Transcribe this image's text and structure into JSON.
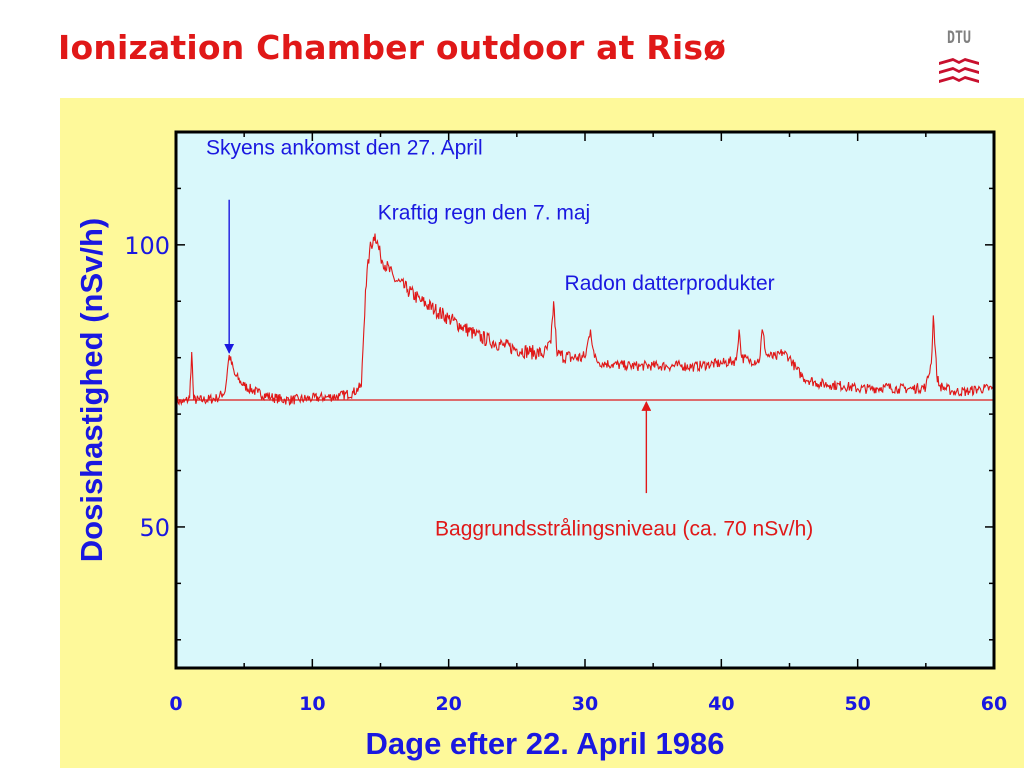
{
  "slide": {
    "title": "Ionization Chamber outdoor at Risø",
    "logo_text": "DTU"
  },
  "colors": {
    "title": "#e01818",
    "panel_bg": "#fef99a",
    "plot_bg": "#d9f8fb",
    "axis_text": "#1a18e0",
    "series": "#e01818",
    "annotation_blue": "#1a18e0",
    "annotation_red": "#e01818",
    "logo_red": "#c8102e",
    "logo_grey": "#808080"
  },
  "chart_data": {
    "type": "line",
    "title": "",
    "xlabel": "Dage efter 22. April 1986",
    "ylabel": "Dosishastighed (nSv/h)",
    "xlim": [
      0,
      60
    ],
    "ylim": [
      25,
      120
    ],
    "x_ticks": [
      0,
      10,
      20,
      30,
      40,
      50,
      60
    ],
    "y_ticks": [
      50,
      100
    ],
    "grid": false,
    "legend": "none",
    "series": [
      {
        "values_xy": [
          [
            0,
            72.5
          ],
          [
            0.5,
            72.0
          ],
          [
            1.0,
            72.8
          ],
          [
            1.15,
            81.0
          ],
          [
            1.3,
            72.5
          ],
          [
            2,
            72.5
          ],
          [
            3,
            72.8
          ],
          [
            3.6,
            74.0
          ],
          [
            3.9,
            80.5
          ],
          [
            4.3,
            77.0
          ],
          [
            5,
            75.0
          ],
          [
            6,
            73.8
          ],
          [
            7,
            73.0
          ],
          [
            8,
            72.5
          ],
          [
            9,
            72.6
          ],
          [
            10,
            72.8
          ],
          [
            11,
            73.0
          ],
          [
            12,
            73.2
          ],
          [
            13,
            73.8
          ],
          [
            13.6,
            75.0
          ],
          [
            13.9,
            92.0
          ],
          [
            14.2,
            99.0
          ],
          [
            14.6,
            102.0
          ],
          [
            15,
            98.0
          ],
          [
            16,
            94.0
          ],
          [
            17,
            92.0
          ],
          [
            18,
            90.0
          ],
          [
            19,
            88.5
          ],
          [
            20,
            87.0
          ],
          [
            21,
            85.5
          ],
          [
            22,
            84.0
          ],
          [
            23,
            83.0
          ],
          [
            24,
            82.2
          ],
          [
            25,
            81.5
          ],
          [
            26,
            81.0
          ],
          [
            27,
            80.7
          ],
          [
            27.5,
            82.5
          ],
          [
            27.7,
            90.0
          ],
          [
            27.9,
            82.0
          ],
          [
            28,
            80.5
          ],
          [
            29,
            80.0
          ],
          [
            30,
            80.0
          ],
          [
            30.4,
            85.0
          ],
          [
            30.7,
            80.0
          ],
          [
            31,
            79.2
          ],
          [
            32,
            78.8
          ],
          [
            33,
            78.6
          ],
          [
            34,
            78.5
          ],
          [
            35,
            78.6
          ],
          [
            36,
            78.5
          ],
          [
            37,
            78.6
          ],
          [
            38,
            78.4
          ],
          [
            39,
            78.8
          ],
          [
            40,
            79.0
          ],
          [
            41.1,
            79.5
          ],
          [
            41.3,
            85.0
          ],
          [
            41.5,
            80.0
          ],
          [
            42,
            79.5
          ],
          [
            42.8,
            79.5
          ],
          [
            43.0,
            85.0
          ],
          [
            43.3,
            80.5
          ],
          [
            44,
            80.0
          ],
          [
            44.5,
            81.0
          ],
          [
            45,
            80.0
          ],
          [
            45.5,
            78.0
          ],
          [
            46,
            76.5
          ],
          [
            47,
            75.5
          ],
          [
            48,
            75.2
          ],
          [
            49,
            75.0
          ],
          [
            50,
            74.5
          ],
          [
            51,
            74.5
          ],
          [
            52,
            74.8
          ],
          [
            53,
            74.5
          ],
          [
            54,
            74.5
          ],
          [
            55,
            74.8
          ],
          [
            55.4,
            79.0
          ],
          [
            55.55,
            87.5
          ],
          [
            55.8,
            77.0
          ],
          [
            56,
            75.0
          ],
          [
            57,
            74.0
          ],
          [
            58,
            74.0
          ],
          [
            59,
            74.5
          ],
          [
            60,
            74.5
          ]
        ]
      }
    ],
    "baseline_value": 72.5,
    "annotations": [
      {
        "text": "Skyens ankomst den 27. April",
        "x": 3.9,
        "y": 80.5,
        "text_x": 2.2,
        "text_y": 116,
        "color": "annotation_blue",
        "arrow_from_y": 108,
        "arrow_to_y": 80.5
      },
      {
        "text": "Kraftig regn den 7. maj",
        "x": 14.6,
        "y": 102.0,
        "text_x": 14.8,
        "text_y": 104.5,
        "color": "annotation_blue"
      },
      {
        "text": "Radon datterprodukter",
        "x": 28,
        "y": 89,
        "text_x": 28.5,
        "text_y": 92.0,
        "color": "annotation_blue"
      },
      {
        "text": "Baggrundsstrålingsniveau (ca. 70 nSv/h)",
        "x": 34.5,
        "y": 72.5,
        "text_x": 19.0,
        "text_y": 48.5,
        "color": "annotation_red",
        "arrow_from_y": 56,
        "arrow_to_y": 72.5
      }
    ]
  }
}
